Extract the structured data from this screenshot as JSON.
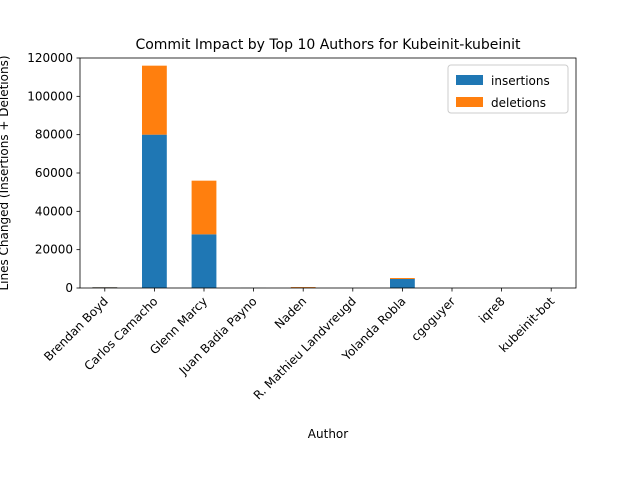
{
  "chart_data": {
    "type": "bar",
    "stacked": true,
    "title": "Commit Impact by Top 10 Authors for Kubeinit-kubeinit",
    "xlabel": "Author",
    "ylabel": "Lines Changed (Insertions + Deletions)",
    "categories": [
      "Brendan Boyd",
      "Carlos Camacho",
      "Glenn Marcy",
      "Juan Badia Payno",
      "Naden",
      "R. Mathieu Landvreugd",
      "Yolanda Robla",
      "cgoguyer",
      "iqre8",
      "kubeinit-bot"
    ],
    "series": [
      {
        "name": "insertions",
        "color": "#1f77b4",
        "values": [
          400,
          80000,
          28000,
          50,
          200,
          20,
          4700,
          20,
          10,
          30
        ]
      },
      {
        "name": "deletions",
        "color": "#ff7f0e",
        "values": [
          100,
          36000,
          28000,
          20,
          300,
          10,
          500,
          10,
          5,
          10
        ]
      }
    ],
    "ylim": [
      0,
      120000
    ],
    "yticks": [
      0,
      20000,
      40000,
      60000,
      80000,
      100000,
      120000
    ],
    "legend_position": "top-right",
    "grid": false
  }
}
